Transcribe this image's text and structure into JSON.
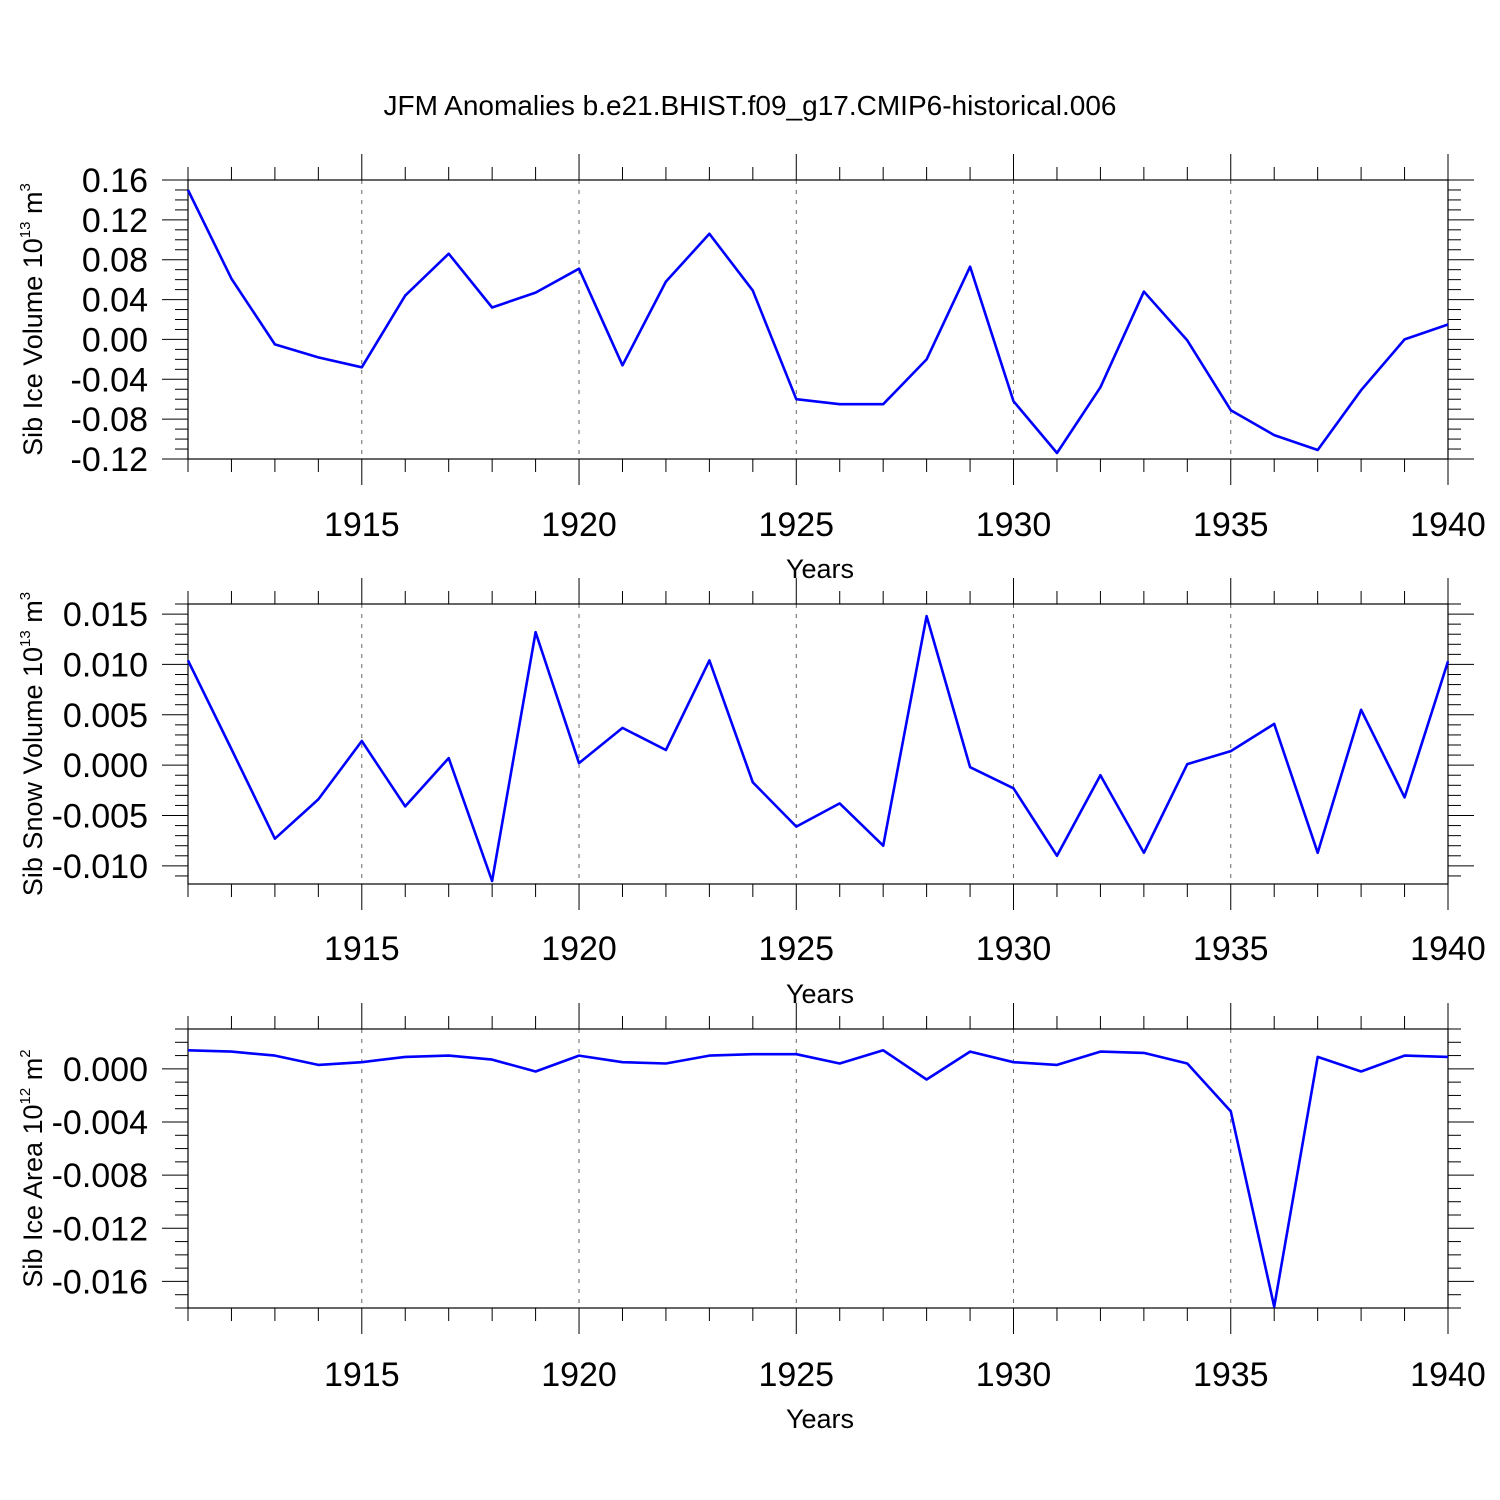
{
  "title": "JFM Anomalies b.e21.BHIST.f09_g17.CMIP6-historical.006",
  "colors": {
    "series": "#0000ff",
    "axes": "#000000"
  },
  "chart_data": [
    {
      "type": "line",
      "ylabel_main": "Sib Ice Volume 10",
      "ylabel_exp": "13",
      "ylabel_unit": " m",
      "ylabel_unit_exp": "3",
      "xlabel": "Years",
      "xlim": [
        1911,
        1940
      ],
      "ylim": [
        -0.12,
        0.16
      ],
      "yticks": [
        -0.12,
        -0.08,
        -0.04,
        0.0,
        0.04,
        0.08,
        0.12,
        0.16
      ],
      "ytick_labels": [
        "-0.12",
        "-0.08",
        "-0.04",
        "0.00",
        "0.04",
        "0.08",
        "0.12",
        "0.16"
      ],
      "y_minor_step": 0.01,
      "xticks": [
        1915,
        1920,
        1925,
        1930,
        1935,
        1940
      ],
      "xtick_labels": [
        "1915",
        "1920",
        "1925",
        "1930",
        "1935",
        "1940"
      ],
      "x": [
        1911,
        1912,
        1913,
        1914,
        1915,
        1916,
        1917,
        1918,
        1919,
        1920,
        1921,
        1922,
        1923,
        1924,
        1925,
        1926,
        1927,
        1928,
        1929,
        1930,
        1931,
        1932,
        1933,
        1934,
        1935,
        1936,
        1937,
        1938,
        1939,
        1940
      ],
      "series": [
        {
          "name": "Sib Ice Volume",
          "values": [
            0.15,
            0.061,
            -0.005,
            -0.018,
            -0.028,
            0.044,
            0.086,
            0.032,
            0.047,
            0.071,
            -0.026,
            0.058,
            0.106,
            0.049,
            -0.06,
            -0.065,
            -0.065,
            -0.02,
            0.073,
            -0.062,
            -0.114,
            -0.048,
            0.048,
            -0.001,
            -0.071,
            -0.096,
            -0.111,
            -0.051,
            0.0,
            0.015
          ]
        }
      ]
    },
    {
      "type": "line",
      "ylabel_main": "Sib Snow Volume 10",
      "ylabel_exp": "13",
      "ylabel_unit": " m",
      "ylabel_unit_exp": "3",
      "xlabel": "Years",
      "xlim": [
        1911,
        1940
      ],
      "ylim": [
        -0.0118,
        0.016
      ],
      "yticks": [
        -0.01,
        -0.005,
        0.0,
        0.005,
        0.01,
        0.015
      ],
      "ytick_labels": [
        "-0.010",
        "-0.005",
        "0.000",
        "0.005",
        "0.010",
        "0.015"
      ],
      "y_minor_step": 0.001,
      "xticks": [
        1915,
        1920,
        1925,
        1930,
        1935,
        1940
      ],
      "xtick_labels": [
        "1915",
        "1920",
        "1925",
        "1930",
        "1935",
        "1940"
      ],
      "x": [
        1911,
        1912,
        1913,
        1914,
        1915,
        1916,
        1917,
        1918,
        1919,
        1920,
        1921,
        1922,
        1923,
        1924,
        1925,
        1926,
        1927,
        1928,
        1929,
        1930,
        1931,
        1932,
        1933,
        1934,
        1935,
        1936,
        1937,
        1938,
        1939,
        1940
      ],
      "series": [
        {
          "name": "Sib Snow Volume",
          "values": [
            0.0104,
            0.0016,
            -0.0073,
            -0.0034,
            0.0024,
            -0.0041,
            0.0007,
            -0.0115,
            0.0132,
            0.0002,
            0.0037,
            0.0015,
            0.0104,
            -0.0017,
            -0.0061,
            -0.0038,
            -0.008,
            0.0148,
            -0.0002,
            -0.0023,
            -0.009,
            -0.001,
            -0.0087,
            0.0001,
            0.0014,
            0.0041,
            -0.0087,
            0.0055,
            -0.0032,
            0.0103
          ]
        }
      ]
    },
    {
      "type": "line",
      "ylabel_main": "Sib Ice Area 10",
      "ylabel_exp": "12",
      "ylabel_unit": " m",
      "ylabel_unit_exp": "2",
      "xlabel": "Years",
      "xlim": [
        1911,
        1940
      ],
      "ylim": [
        -0.018,
        0.003
      ],
      "yticks": [
        -0.016,
        -0.012,
        -0.008,
        -0.004,
        0.0
      ],
      "ytick_labels": [
        "-0.016",
        "-0.012",
        "-0.008",
        "-0.004",
        "0.000"
      ],
      "y_minor_step": 0.001,
      "xticks": [
        1915,
        1920,
        1925,
        1930,
        1935,
        1940
      ],
      "xtick_labels": [
        "1915",
        "1920",
        "1925",
        "1930",
        "1935",
        "1940"
      ],
      "x": [
        1911,
        1912,
        1913,
        1914,
        1915,
        1916,
        1917,
        1918,
        1919,
        1920,
        1921,
        1922,
        1923,
        1924,
        1925,
        1926,
        1927,
        1928,
        1929,
        1930,
        1931,
        1932,
        1933,
        1934,
        1935,
        1936,
        1937,
        1938,
        1939,
        1940
      ],
      "series": [
        {
          "name": "Sib Ice Area",
          "values": [
            0.0014,
            0.0013,
            0.001,
            0.0003,
            0.0005,
            0.0009,
            0.001,
            0.0007,
            -0.0002,
            0.001,
            0.0005,
            0.0004,
            0.001,
            0.0011,
            0.0011,
            0.0004,
            0.0014,
            -0.0008,
            0.0013,
            0.0005,
            0.0003,
            0.0013,
            0.0012,
            0.0004,
            -0.0032,
            -0.0179,
            0.0009,
            -0.0002,
            0.001,
            0.0009
          ]
        }
      ]
    }
  ]
}
